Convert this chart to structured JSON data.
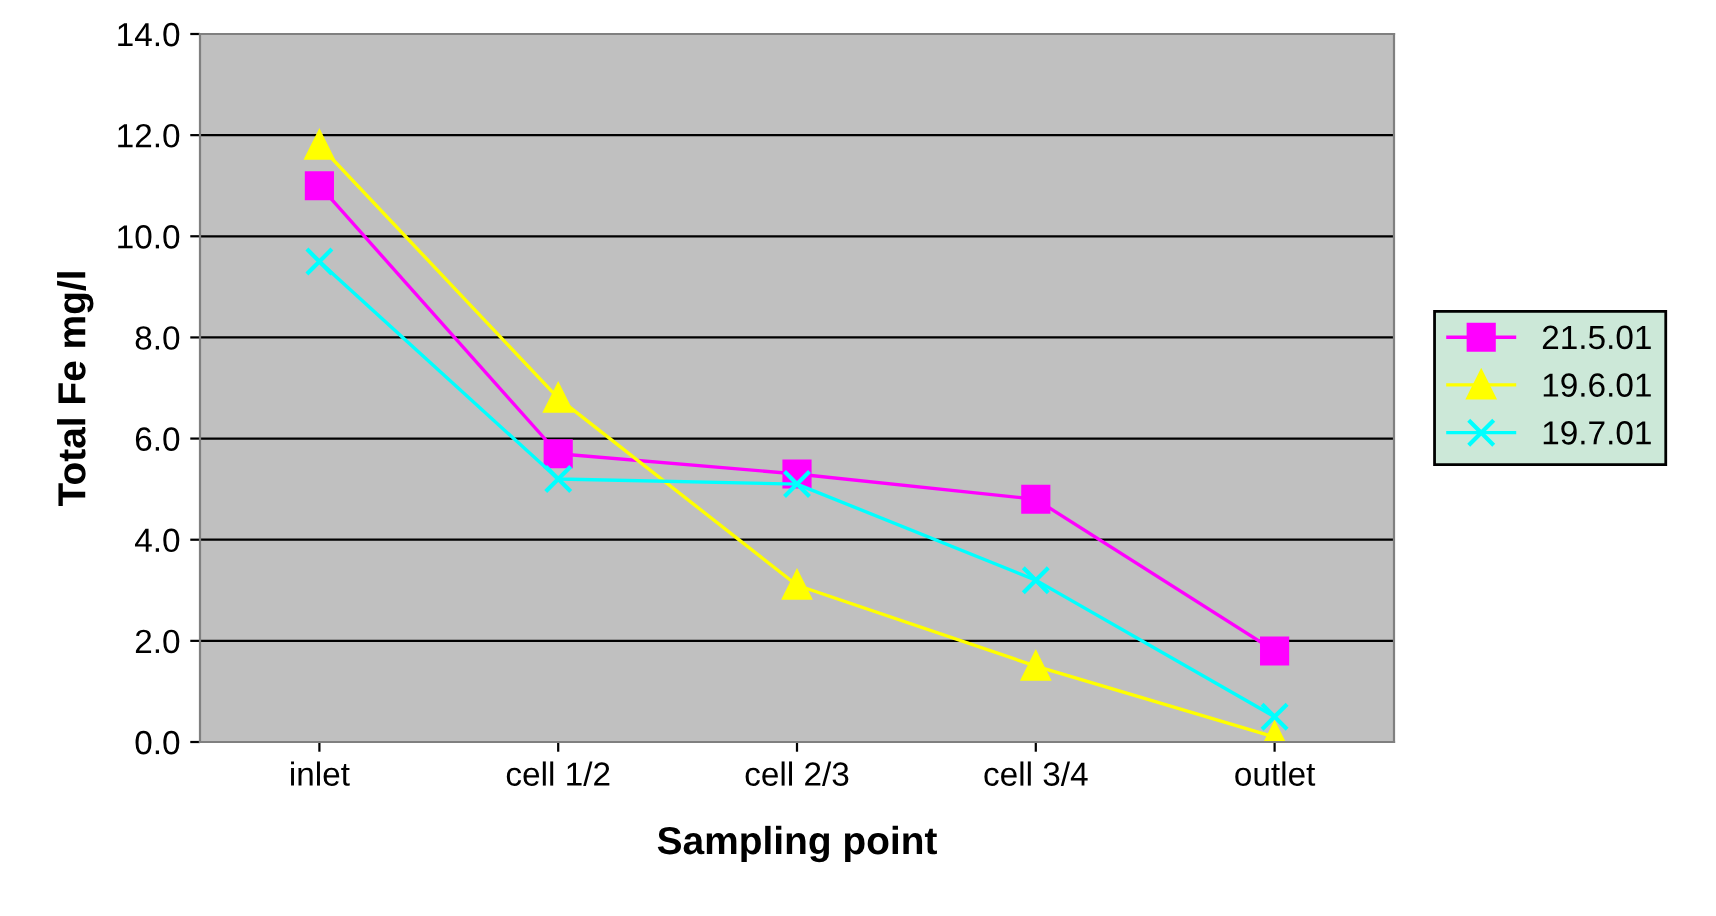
{
  "chart_data": {
    "type": "line",
    "xlabel": "Sampling point",
    "ylabel": "Total Fe mg/l",
    "categories": [
      "inlet",
      "cell 1/2",
      "cell 2/3",
      "cell 3/4",
      "outlet"
    ],
    "series": [
      {
        "name": "21.5.01",
        "color": "#ff00ff",
        "marker": "square",
        "values": [
          11.0,
          5.7,
          5.3,
          4.8,
          1.8
        ]
      },
      {
        "name": "19.6.01",
        "color": "#ffff00",
        "marker": "triangle",
        "values": [
          11.8,
          6.8,
          3.1,
          1.5,
          0.1
        ]
      },
      {
        "name": "19.7.01",
        "color": "#00ffff",
        "marker": "cross",
        "values": [
          9.5,
          5.2,
          5.1,
          3.2,
          0.5
        ]
      }
    ],
    "ylim": [
      0,
      14
    ],
    "yticks": [
      {
        "value": 0,
        "label": "0.0"
      },
      {
        "value": 2,
        "label": "2.0"
      },
      {
        "value": 4,
        "label": "4.0"
      },
      {
        "value": 6,
        "label": "6.0"
      },
      {
        "value": 8,
        "label": "8.0"
      },
      {
        "value": 10,
        "label": "10.0"
      },
      {
        "value": 12,
        "label": "12.0"
      },
      {
        "value": 14,
        "label": "14.0"
      }
    ],
    "grid": "y",
    "legend": "right",
    "line_style": "solid"
  }
}
